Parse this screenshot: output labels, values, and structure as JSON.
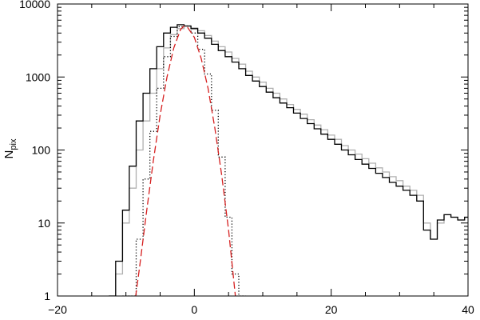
{
  "chart_data": {
    "type": "line",
    "style": "step histogram",
    "title": "",
    "xlabel": "",
    "ylabel": "N",
    "ylabel_subscript": "pix",
    "xlim": [
      -20,
      40
    ],
    "ylim": [
      1,
      10000
    ],
    "yscale": "log",
    "grid": false,
    "x_ticks": [
      -20,
      0,
      20,
      40
    ],
    "x_tick_labels": [
      "−20",
      "0",
      "20",
      "40"
    ],
    "y_ticks": [
      1,
      10,
      100,
      1000,
      10000
    ],
    "y_tick_labels": [
      "1",
      "10",
      "100",
      "1000",
      "10000"
    ],
    "series": [
      {
        "color": "#b0b0b0",
        "dash": "solid",
        "x": [
          -12,
          -11,
          -10,
          -9,
          -8,
          -7,
          -6,
          -5,
          -4,
          -3,
          -2,
          -1,
          0,
          1,
          2,
          3,
          4,
          5,
          6,
          7,
          8,
          9,
          10,
          11,
          12,
          13,
          14,
          15,
          16,
          17,
          18,
          19,
          20,
          21,
          22,
          23,
          24,
          25,
          26,
          27,
          28,
          29,
          30,
          31,
          32,
          33,
          34,
          35,
          36,
          37,
          38,
          39,
          40
        ],
        "y": [
          1,
          2,
          10,
          30,
          100,
          250,
          600,
          1300,
          2500,
          3800,
          4600,
          5000,
          4700,
          4300,
          3700,
          3100,
          2600,
          2200,
          1800,
          1500,
          1200,
          1000,
          850,
          700,
          600,
          500,
          420,
          360,
          310,
          260,
          220,
          190,
          160,
          140,
          115,
          100,
          88,
          76,
          66,
          57,
          50,
          43,
          38,
          32,
          28,
          24,
          10,
          6,
          10,
          13,
          12,
          11,
          12
        ]
      },
      {
        "color": "#000000",
        "dash": "solid",
        "x": [
          -12,
          -11,
          -10,
          -9,
          -8,
          -7,
          -6,
          -5,
          -4,
          -3,
          -2,
          -1,
          0,
          1,
          2,
          3,
          4,
          5,
          6,
          7,
          8,
          9,
          10,
          11,
          12,
          13,
          14,
          15,
          16,
          17,
          18,
          19,
          20,
          21,
          22,
          23,
          24,
          25,
          26,
          27,
          28,
          29,
          30,
          31,
          32,
          33,
          34,
          35,
          36,
          37,
          38,
          39,
          40
        ],
        "y": [
          1,
          3,
          15,
          60,
          250,
          600,
          1300,
          2600,
          4000,
          4800,
          5200,
          5000,
          4600,
          4000,
          3400,
          2800,
          2300,
          1900,
          1600,
          1300,
          1050,
          880,
          740,
          620,
          520,
          440,
          380,
          320,
          270,
          230,
          195,
          165,
          140,
          120,
          100,
          86,
          74,
          64,
          56,
          48,
          42,
          36,
          32,
          28,
          24,
          20,
          8,
          6,
          11,
          13,
          12,
          11,
          12
        ]
      },
      {
        "color": "#000000",
        "dash": "dotted",
        "x": [
          -10,
          -9,
          -8,
          -7,
          -6,
          -5,
          -4,
          -3,
          -2,
          -1,
          0,
          1,
          2,
          3,
          4,
          5,
          6,
          7
        ],
        "y": [
          1,
          1,
          6,
          40,
          180,
          700,
          1900,
          3600,
          4900,
          5000,
          4000,
          2400,
          1100,
          350,
          80,
          12,
          2,
          1
        ]
      },
      {
        "color": "#d62020",
        "dash": "dashed",
        "curve": "gaussian",
        "x": [
          -9,
          -8,
          -7,
          -6,
          -5,
          -4,
          -3,
          -2,
          -1.5,
          -1,
          0,
          1,
          2,
          3,
          4,
          5,
          6
        ],
        "y": [
          0.5,
          2.5,
          14,
          70,
          300,
          1000,
          2500,
          4500,
          5000,
          4800,
          3500,
          1800,
          700,
          200,
          45,
          8,
          1
        ]
      }
    ]
  }
}
